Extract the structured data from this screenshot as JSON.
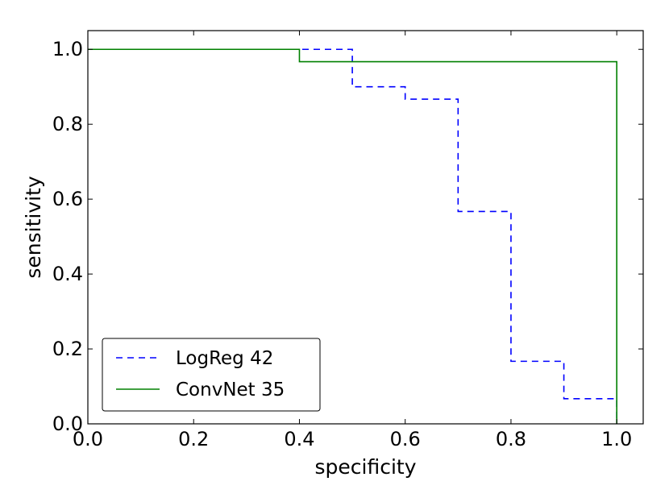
{
  "chart_data": {
    "type": "line",
    "xlabel": "specificity",
    "ylabel": "sensitivity",
    "xlim": [
      0.0,
      1.05
    ],
    "ylim": [
      0.0,
      1.05
    ],
    "xticks": [
      0.0,
      0.2,
      0.4,
      0.6,
      0.8,
      1.0
    ],
    "yticks": [
      0.0,
      0.2,
      0.4,
      0.6,
      0.8,
      1.0
    ],
    "xtick_labels": [
      "0.0",
      "0.2",
      "0.4",
      "0.6",
      "0.8",
      "1.0"
    ],
    "ytick_labels": [
      "0.0",
      "0.2",
      "0.4",
      "0.6",
      "0.8",
      "1.0"
    ],
    "grid": false,
    "legend_position": "lower-left",
    "series": [
      {
        "name": "LogReg 42",
        "color": "#0000ff",
        "style": "dashed",
        "x": [
          0.0,
          0.4,
          0.5,
          0.5,
          0.6,
          0.6,
          0.7,
          0.7,
          0.8,
          0.8,
          0.9,
          0.9,
          1.0,
          1.0
        ],
        "y": [
          1.0,
          1.0,
          1.0,
          0.9,
          0.9,
          0.867,
          0.867,
          0.567,
          0.567,
          0.167,
          0.167,
          0.067,
          0.067,
          0.0
        ]
      },
      {
        "name": "ConvNet 35",
        "color": "#008000",
        "style": "solid",
        "x": [
          0.0,
          0.4,
          0.4,
          1.0,
          1.0
        ],
        "y": [
          1.0,
          1.0,
          0.967,
          0.967,
          0.0
        ]
      }
    ]
  }
}
